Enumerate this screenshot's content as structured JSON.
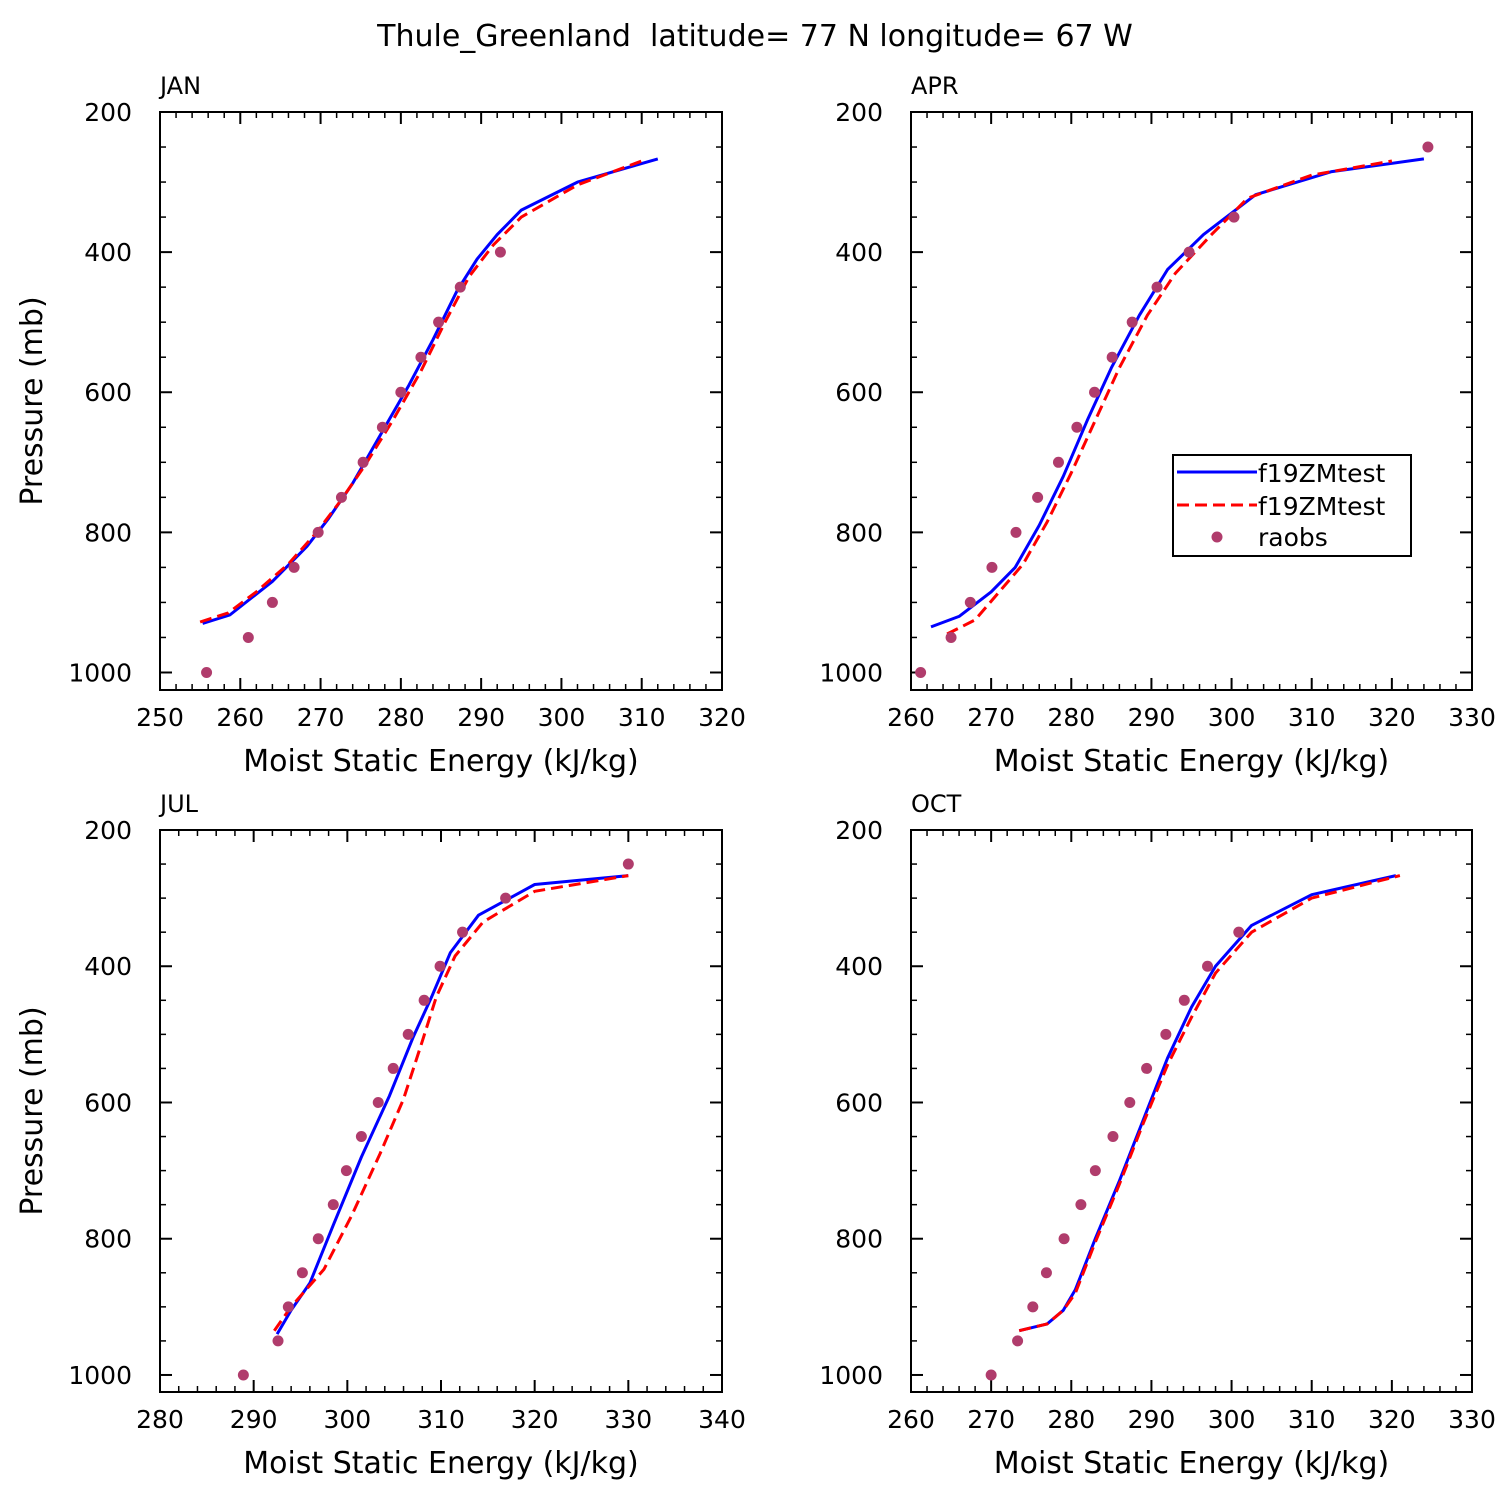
{
  "figure_title": "Thule_Greenland  latitude= 77 N longitude= 67 W",
  "colors": {
    "model_1": "#0000ff",
    "model_2": "#ff0000",
    "obs": "#b03c6c",
    "axis": "#000000"
  },
  "legend": {
    "panel": "APR",
    "entries": [
      {
        "label": "f19ZMtest",
        "style": "solid",
        "color": "#0000ff"
      },
      {
        "label": "f19ZMtest",
        "style": "dashed",
        "color": "#ff0000"
      },
      {
        "label": "raobs",
        "style": "marker",
        "color": "#b03c6c"
      }
    ]
  },
  "chart_data": [
    {
      "type": "line",
      "panel_label": "JAN",
      "xlabel": "Moist Static Energy (kJ/kg)",
      "ylabel": "Pressure (mb)",
      "xlim": [
        250,
        320
      ],
      "xticks": [
        250,
        260,
        270,
        280,
        290,
        300,
        310,
        320
      ],
      "ylim": [
        200,
        1025
      ],
      "yticks": [
        200,
        400,
        600,
        800,
        1000
      ],
      "y_inverted": true,
      "series": [
        {
          "name": "f19ZMtest",
          "style": "solid",
          "color": "#0000ff",
          "points": [
            [
              255.3,
              930
            ],
            [
              258.7,
              918
            ],
            [
              264,
              870
            ],
            [
              268.3,
              820
            ],
            [
              271,
              780
            ],
            [
              274,
              730
            ],
            [
              277.5,
              660
            ],
            [
              281,
              590
            ],
            [
              284,
              525
            ],
            [
              287,
              455
            ],
            [
              289.5,
              410
            ],
            [
              292,
              375
            ],
            [
              295,
              340
            ],
            [
              302,
              300
            ],
            [
              312,
              267
            ]
          ]
        },
        {
          "name": "f19ZMtest",
          "style": "dashed",
          "color": "#ff0000",
          "points": [
            [
              255,
              928
            ],
            [
              258.5,
              915
            ],
            [
              262,
              885
            ],
            [
              266,
              845
            ],
            [
              269.5,
              800
            ],
            [
              272.5,
              755
            ],
            [
              275.5,
              705
            ],
            [
              279,
              640
            ],
            [
              282.5,
              570
            ],
            [
              285.5,
              500
            ],
            [
              288.5,
              435
            ],
            [
              291.5,
              390
            ],
            [
              295,
              350
            ],
            [
              302,
              304
            ],
            [
              310,
              270
            ]
          ]
        },
        {
          "name": "raobs",
          "style": "marker",
          "color": "#b03c6c",
          "points": [
            [
              255.8,
              1000
            ],
            [
              261,
              950
            ],
            [
              264,
              900
            ],
            [
              266.7,
              850
            ],
            [
              269.7,
              800
            ],
            [
              272.6,
              750
            ],
            [
              275.3,
              700
            ],
            [
              277.7,
              650
            ],
            [
              280,
              600
            ],
            [
              282.5,
              550
            ],
            [
              284.7,
              500
            ],
            [
              287.4,
              450
            ],
            [
              292.4,
              400
            ]
          ]
        }
      ]
    },
    {
      "type": "line",
      "panel_label": "APR",
      "xlabel": "Moist Static Energy (kJ/kg)",
      "ylabel": "",
      "xlim": [
        260,
        330
      ],
      "xticks": [
        260,
        270,
        280,
        290,
        300,
        310,
        320,
        330
      ],
      "ylim": [
        200,
        1025
      ],
      "yticks": [
        200,
        400,
        600,
        800,
        1000
      ],
      "y_inverted": true,
      "series": [
        {
          "name": "f19ZMtest",
          "style": "solid",
          "color": "#0000ff",
          "points": [
            [
              262.5,
              935
            ],
            [
              266,
              920
            ],
            [
              270,
              885
            ],
            [
              273,
              850
            ],
            [
              276,
              790
            ],
            [
              279,
              720
            ],
            [
              282,
              640
            ],
            [
              285,
              565
            ],
            [
              288.5,
              490
            ],
            [
              292,
              425
            ],
            [
              296.5,
              375
            ],
            [
              303,
              318
            ],
            [
              312.5,
              285
            ],
            [
              324,
              267
            ]
          ]
        },
        {
          "name": "f19ZMtest",
          "style": "dashed",
          "color": "#ff0000",
          "points": [
            [
              264.5,
              945
            ],
            [
              268,
              925
            ],
            [
              271,
              885
            ],
            [
              274,
              845
            ],
            [
              277,
              785
            ],
            [
              280,
              715
            ],
            [
              283,
              640
            ],
            [
              286,
              565
            ],
            [
              289.5,
              490
            ],
            [
              293,
              430
            ],
            [
              297.5,
              375
            ],
            [
              302,
              323
            ],
            [
              310,
              290
            ],
            [
              320,
              270
            ]
          ]
        },
        {
          "name": "raobs",
          "style": "marker",
          "color": "#b03c6c",
          "points": [
            [
              261.2,
              1000
            ],
            [
              265,
              950
            ],
            [
              267.4,
              900
            ],
            [
              270.1,
              850
            ],
            [
              273.1,
              800
            ],
            [
              275.8,
              750
            ],
            [
              278.4,
              700
            ],
            [
              280.7,
              650
            ],
            [
              282.9,
              600
            ],
            [
              285.1,
              550
            ],
            [
              287.6,
              500
            ],
            [
              290.7,
              450
            ],
            [
              294.7,
              400
            ],
            [
              300.3,
              350
            ],
            [
              324.5,
              250
            ]
          ]
        }
      ]
    },
    {
      "type": "line",
      "panel_label": "JUL",
      "xlabel": "Moist Static Energy (kJ/kg)",
      "ylabel": "Pressure (mb)",
      "xlim": [
        280,
        340
      ],
      "xticks": [
        280,
        290,
        300,
        310,
        320,
        330,
        340
      ],
      "ylim": [
        200,
        1025
      ],
      "yticks": [
        200,
        400,
        600,
        800,
        1000
      ],
      "y_inverted": true,
      "series": [
        {
          "name": "f19ZMtest",
          "style": "solid",
          "color": "#0000ff",
          "points": [
            [
              292.5,
              940
            ],
            [
              294,
              905
            ],
            [
              296,
              865
            ],
            [
              298.5,
              780
            ],
            [
              301.5,
              680
            ],
            [
              304.5,
              590
            ],
            [
              307,
              505
            ],
            [
              309,
              445
            ],
            [
              311,
              380
            ],
            [
              314,
              325
            ],
            [
              320,
              280
            ],
            [
              330,
              267
            ]
          ]
        },
        {
          "name": "f19ZMtest",
          "style": "dashed",
          "color": "#ff0000",
          "points": [
            [
              292.2,
              935
            ],
            [
              294,
              900
            ],
            [
              297.5,
              845
            ],
            [
              300.5,
              765
            ],
            [
              303.5,
              675
            ],
            [
              306,
              595
            ],
            [
              308,
              510
            ],
            [
              309.5,
              445
            ],
            [
              311.5,
              385
            ],
            [
              314.5,
              335
            ],
            [
              320,
              290
            ],
            [
              330,
              267
            ]
          ]
        },
        {
          "name": "raobs",
          "style": "marker",
          "color": "#b03c6c",
          "points": [
            [
              288.9,
              1000
            ],
            [
              292.6,
              950
            ],
            [
              293.7,
              900
            ],
            [
              295.2,
              850
            ],
            [
              296.9,
              800
            ],
            [
              298.5,
              750
            ],
            [
              299.9,
              700
            ],
            [
              301.5,
              650
            ],
            [
              303.3,
              600
            ],
            [
              304.9,
              550
            ],
            [
              306.5,
              500
            ],
            [
              308.2,
              450
            ],
            [
              309.9,
              400
            ],
            [
              312.3,
              350
            ],
            [
              316.9,
              300
            ],
            [
              330,
              250
            ]
          ]
        }
      ]
    },
    {
      "type": "line",
      "panel_label": "OCT",
      "xlabel": "Moist Static Energy (kJ/kg)",
      "ylabel": "",
      "xlim": [
        260,
        330
      ],
      "xticks": [
        260,
        270,
        280,
        290,
        300,
        310,
        320,
        330
      ],
      "ylim": [
        200,
        1025
      ],
      "yticks": [
        200,
        400,
        600,
        800,
        1000
      ],
      "y_inverted": true,
      "series": [
        {
          "name": "f19ZMtest",
          "style": "solid",
          "color": "#0000ff",
          "points": [
            [
              273.5,
              935
            ],
            [
              277,
              925
            ],
            [
              279,
              905
            ],
            [
              280.5,
              875
            ],
            [
              283,
              800
            ],
            [
              286,
              715
            ],
            [
              289,
              625
            ],
            [
              292,
              535
            ],
            [
              295,
              460
            ],
            [
              298,
              400
            ],
            [
              302.5,
              340
            ],
            [
              310,
              295
            ],
            [
              320.5,
              267
            ]
          ]
        },
        {
          "name": "f19ZMtest",
          "style": "dashed",
          "color": "#ff0000",
          "points": [
            [
              273.5,
              935
            ],
            [
              277,
              925
            ],
            [
              279,
              905
            ],
            [
              280.5,
              880
            ],
            [
              283,
              805
            ],
            [
              286,
              720
            ],
            [
              289,
              630
            ],
            [
              292,
              545
            ],
            [
              295,
              475
            ],
            [
              298,
              410
            ],
            [
              302.5,
              350
            ],
            [
              310,
              300
            ],
            [
              321,
              267
            ]
          ]
        },
        {
          "name": "raobs",
          "style": "marker",
          "color": "#b03c6c",
          "points": [
            [
              270,
              1000
            ],
            [
              273.3,
              950
            ],
            [
              275.2,
              900
            ],
            [
              276.9,
              850
            ],
            [
              279.1,
              800
            ],
            [
              281.2,
              750
            ],
            [
              283,
              700
            ],
            [
              285.2,
              650
            ],
            [
              287.3,
              600
            ],
            [
              289.4,
              550
            ],
            [
              291.8,
              500
            ],
            [
              294.1,
              450
            ],
            [
              297,
              400
            ],
            [
              300.9,
              350
            ]
          ]
        }
      ]
    }
  ]
}
